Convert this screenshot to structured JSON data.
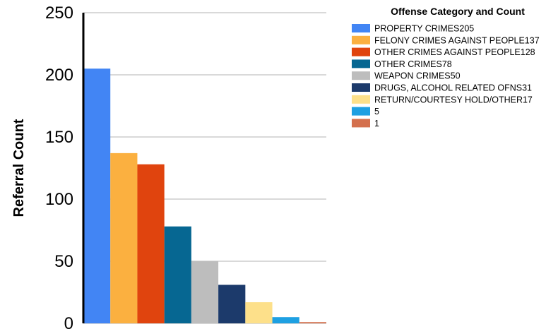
{
  "chart_data": {
    "type": "bar",
    "ylabel": "Referral Count",
    "xlabel": "",
    "ylim": [
      0,
      250
    ],
    "yticks": [
      "0",
      "50",
      "100",
      "150",
      "200",
      "250"
    ],
    "grid": true,
    "legend": {
      "title": "Offense Category and Count",
      "placement": "top-right"
    },
    "bars": [
      {
        "label": "PROPERTY CRIMES205",
        "value": 205,
        "color": "#4285F4"
      },
      {
        "label": "FELONY CRIMES AGAINST PEOPLE137",
        "value": 137,
        "color": "#FBB040"
      },
      {
        "label": "OTHER CRIMES AGAINST PEOPLE128",
        "value": 128,
        "color": "#E0440E"
      },
      {
        "label": "OTHER CRIMES78",
        "value": 78,
        "color": "#066792"
      },
      {
        "label": "WEAPON CRIMES50",
        "value": 50,
        "color": "#BDBDBD"
      },
      {
        "label": "DRUGS, ALCOHOL RELATED OFNS31",
        "value": 31,
        "color": "#1C3A6B"
      },
      {
        "label": "RETURN/COURTESY HOLD/OTHER17",
        "value": 17,
        "color": "#FDE08A"
      },
      {
        "label": "5",
        "value": 5,
        "color": "#1EA0E2"
      },
      {
        "label": "1",
        "value": 1,
        "color": "#D4704D"
      }
    ]
  }
}
